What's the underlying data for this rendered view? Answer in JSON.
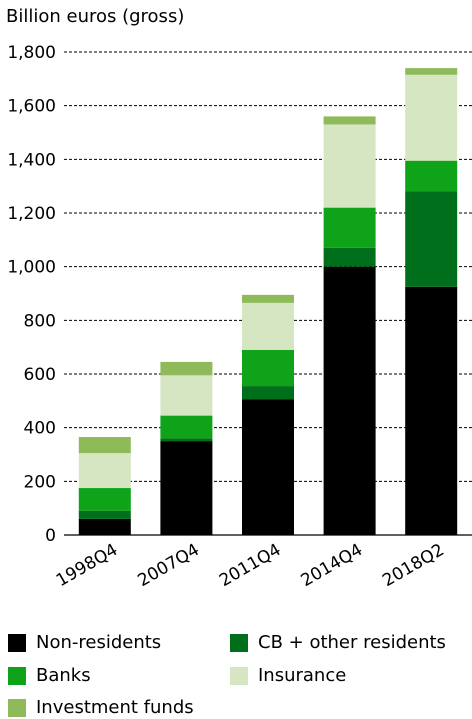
{
  "chart_data": {
    "type": "bar",
    "stacked": true,
    "title": "",
    "ylabel": "Billion euros (gross)",
    "xlabel": "",
    "ylim": [
      0,
      1800
    ],
    "yticks": [
      0,
      200,
      400,
      600,
      800,
      1000,
      1200,
      1400,
      1600,
      1800
    ],
    "ytick_labels": [
      "0",
      "200",
      "400",
      "600",
      "800",
      "1,000",
      "1,200",
      "1,400",
      "1,600",
      "1,800"
    ],
    "grid": "horizontal dashed",
    "legend_position": "bottom",
    "categories": [
      "1998Q4",
      "2007Q4",
      "2011Q4",
      "2014Q4",
      "2018Q2"
    ],
    "series": [
      {
        "name": "Non-residents",
        "color": "#000000",
        "values": [
          60,
          350,
          505,
          1000,
          925
        ]
      },
      {
        "name": "CB + other residents",
        "color": "#006f1b",
        "values": [
          30,
          10,
          50,
          70,
          355
        ]
      },
      {
        "name": "Banks",
        "color": "#0fa31a",
        "values": [
          85,
          85,
          135,
          150,
          115
        ]
      },
      {
        "name": "Insurance",
        "color": "#d7e6c2",
        "values": [
          130,
          150,
          175,
          310,
          320
        ]
      },
      {
        "name": "Investment funds",
        "color": "#8fba5a",
        "values": [
          60,
          50,
          30,
          30,
          25
        ]
      }
    ]
  }
}
